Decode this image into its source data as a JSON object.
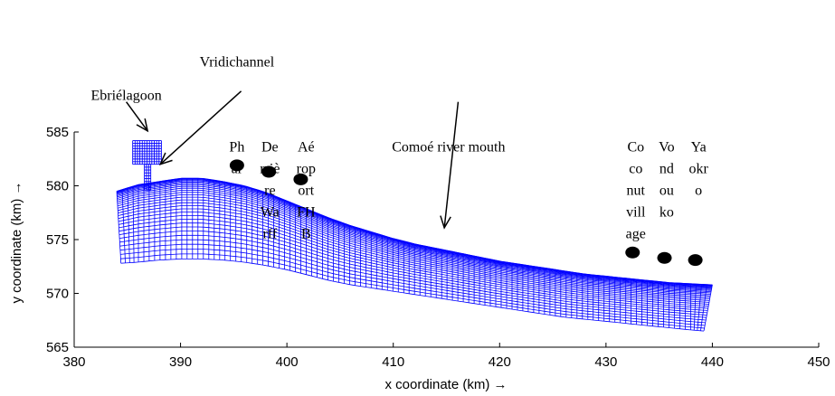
{
  "chart_data": {
    "type": "mesh_map",
    "xlabel": "x coordinate (km) →",
    "ylabel": "y coordinate (km) →",
    "xlim": [
      380,
      450
    ],
    "ylim": [
      565,
      585
    ],
    "xticks": [
      380,
      390,
      400,
      410,
      420,
      430,
      440,
      450
    ],
    "yticks": [
      565,
      570,
      575,
      580,
      585
    ],
    "mesh_color": "#0000ff",
    "grid": false,
    "coast": [
      [
        384,
        579.5
      ],
      [
        386,
        580.1
      ],
      [
        388,
        580.4
      ],
      [
        390,
        580.7
      ],
      [
        392,
        580.7
      ],
      [
        394,
        580.4
      ],
      [
        396,
        580.0
      ],
      [
        398,
        579.4
      ],
      [
        400,
        578.6
      ],
      [
        402,
        577.8
      ],
      [
        404,
        577.0
      ],
      [
        406,
        576.3
      ],
      [
        408,
        575.7
      ],
      [
        410,
        575.1
      ],
      [
        412,
        574.6
      ],
      [
        414,
        574.2
      ],
      [
        416,
        573.8
      ],
      [
        418,
        573.4
      ],
      [
        420,
        573.0
      ],
      [
        422,
        572.7
      ],
      [
        424,
        572.4
      ],
      [
        426,
        572.1
      ],
      [
        428,
        571.8
      ],
      [
        430,
        571.6
      ],
      [
        432,
        571.4
      ],
      [
        434,
        571.2
      ],
      [
        436,
        571.0
      ],
      [
        438,
        570.9
      ],
      [
        440,
        570.8
      ]
    ],
    "offshore": [
      [
        384.4,
        572.8
      ],
      [
        386,
        572.9
      ],
      [
        388,
        573.1
      ],
      [
        390,
        573.2
      ],
      [
        392,
        573.2
      ],
      [
        394,
        573.1
      ],
      [
        396,
        572.9
      ],
      [
        398,
        572.6
      ],
      [
        400,
        572.2
      ],
      [
        402,
        571.7
      ],
      [
        404,
        571.2
      ],
      [
        406,
        570.8
      ],
      [
        408,
        570.5
      ],
      [
        410,
        570.2
      ],
      [
        412,
        569.9
      ],
      [
        414,
        569.6
      ],
      [
        416,
        569.3
      ],
      [
        418,
        569.0
      ],
      [
        420,
        568.7
      ],
      [
        422,
        568.4
      ],
      [
        424,
        568.1
      ],
      [
        426,
        567.8
      ],
      [
        428,
        567.6
      ],
      [
        430,
        567.4
      ],
      [
        432,
        567.2
      ],
      [
        434,
        567.0
      ],
      [
        436,
        566.8
      ],
      [
        438,
        566.6
      ],
      [
        439.2,
        566.5
      ]
    ],
    "lagoon_block": {
      "x": [
        385.5,
        388.2
      ],
      "y": [
        582.0,
        584.2
      ]
    },
    "vridi_channel": {
      "x": [
        386.6,
        387.2
      ],
      "y": [
        579.6,
        582.0
      ]
    },
    "stations": [
      {
        "x": 395.3,
        "y": 581.9
      },
      {
        "x": 398.3,
        "y": 581.3
      },
      {
        "x": 401.3,
        "y": 580.6
      },
      {
        "x": 432.5,
        "y": 573.8
      },
      {
        "x": 435.5,
        "y": 573.3
      },
      {
        "x": 438.4,
        "y": 573.1
      }
    ],
    "annotations": [
      {
        "lines": [
          "Ebriélagoon"
        ],
        "x": 384.9,
        "y": 588.0
      },
      {
        "lines": [
          "Vridichannel"
        ],
        "x": 395.3,
        "y": 591.1
      },
      {
        "lines": [
          "Ph",
          "ar"
        ],
        "x": 395.3,
        "y": 583.2
      },
      {
        "lines": [
          "De",
          "rriè",
          "re",
          "Wa",
          "rff"
        ],
        "x": 398.4,
        "y": 583.2
      },
      {
        "lines": [
          "Aé",
          "rop",
          "ort",
          "FH",
          "B"
        ],
        "x": 401.8,
        "y": 583.2
      },
      {
        "lines": [
          "Comoé river mouth"
        ],
        "x": 415.2,
        "y": 583.2
      },
      {
        "lines": [
          "Co",
          "co",
          "nut",
          "vill",
          "age"
        ],
        "x": 432.8,
        "y": 583.2
      },
      {
        "lines": [
          "Vo",
          "nd",
          "ou",
          "ko"
        ],
        "x": 435.7,
        "y": 583.2
      },
      {
        "lines": [
          "Ya",
          "okr",
          "o"
        ],
        "x": 438.7,
        "y": 583.2
      }
    ],
    "arrows": [
      {
        "from": [
          384.9,
          587.8
        ],
        "to": [
          386.9,
          585.1
        ]
      },
      {
        "from": [
          395.7,
          588.8
        ],
        "to": [
          388.1,
          582.0
        ]
      },
      {
        "from": [
          416.1,
          587.8
        ],
        "to": [
          414.8,
          576.1
        ]
      }
    ]
  }
}
